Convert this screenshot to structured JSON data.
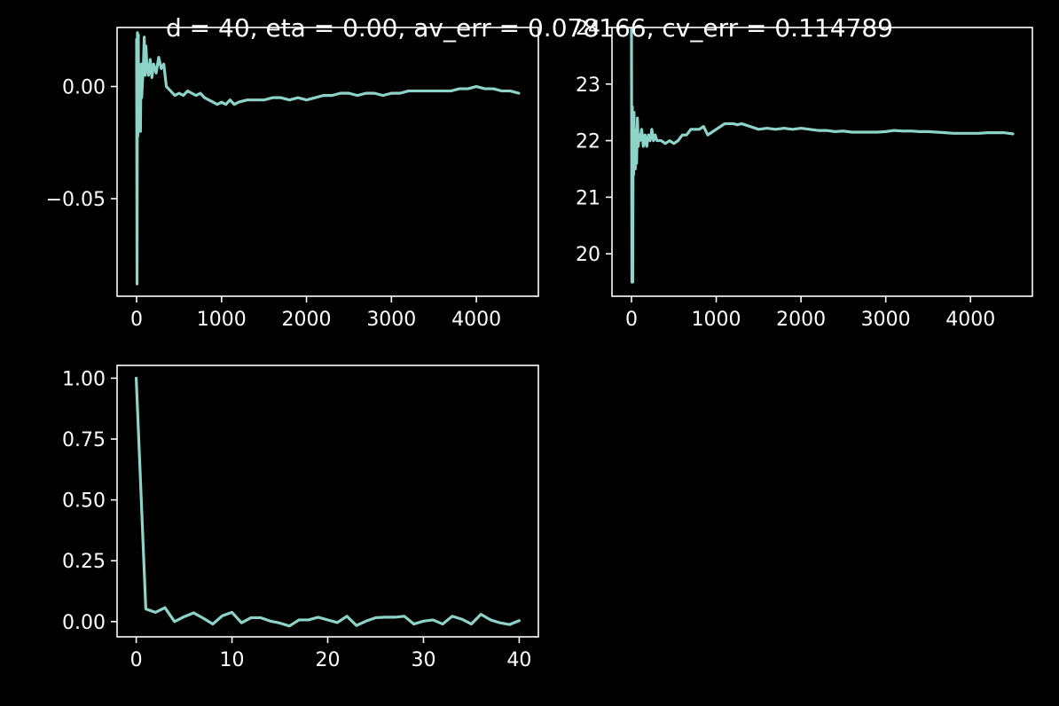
{
  "title": "d = 40, eta = 0.00, av_err = 0.078166, cv_err = 0.114789",
  "colors": {
    "background": "#000000",
    "foreground": "#ffffff",
    "series": "#8dd3c7"
  },
  "chart_data": [
    {
      "type": "line",
      "grid": false,
      "xlim": [
        -230,
        4730
      ],
      "ylim": [
        -0.0935,
        0.0263
      ],
      "xticks": [
        0,
        1000,
        2000,
        3000,
        4000
      ],
      "xtick_labels": [
        "0",
        "1000",
        "2000",
        "3000",
        "4000"
      ],
      "yticks": [
        0.0,
        -0.05
      ],
      "ytick_labels": [
        "0.00",
        "−0.05"
      ],
      "x": [
        0,
        5,
        10,
        15,
        20,
        25,
        30,
        35,
        40,
        45,
        50,
        55,
        60,
        70,
        80,
        90,
        100,
        110,
        120,
        140,
        160,
        180,
        200,
        230,
        260,
        290,
        320,
        350,
        400,
        450,
        500,
        550,
        600,
        650,
        700,
        750,
        800,
        850,
        900,
        950,
        1000,
        1050,
        1100,
        1150,
        1200,
        1300,
        1400,
        1500,
        1600,
        1700,
        1800,
        1900,
        2000,
        2100,
        2200,
        2300,
        2400,
        2500,
        2600,
        2700,
        2800,
        2900,
        3000,
        3100,
        3200,
        3300,
        3400,
        3500,
        3600,
        3700,
        3800,
        3900,
        4000,
        4100,
        4200,
        4300,
        4400,
        4500
      ],
      "y": [
        0.021,
        -0.088,
        0.024,
        -0.022,
        0.023,
        -0.02,
        0.005,
        -0.018,
        -0.005,
        -0.02,
        0.0,
        0.01,
        -0.005,
        0.003,
        0.01,
        0.022,
        0.005,
        0.018,
        0.01,
        0.005,
        0.012,
        0.004,
        0.01,
        0.006,
        0.013,
        0.008,
        0.01,
        0.0,
        -0.002,
        -0.004,
        -0.003,
        -0.004,
        -0.002,
        -0.003,
        -0.004,
        -0.003,
        -0.005,
        -0.006,
        -0.007,
        -0.008,
        -0.007,
        -0.008,
        -0.006,
        -0.008,
        -0.007,
        -0.006,
        -0.006,
        -0.006,
        -0.005,
        -0.005,
        -0.006,
        -0.005,
        -0.006,
        -0.005,
        -0.004,
        -0.004,
        -0.003,
        -0.003,
        -0.004,
        -0.003,
        -0.003,
        -0.004,
        -0.003,
        -0.003,
        -0.002,
        -0.002,
        -0.002,
        -0.002,
        -0.002,
        -0.002,
        -0.001,
        -0.001,
        0.0,
        -0.001,
        -0.001,
        -0.002,
        -0.002,
        -0.003
      ]
    },
    {
      "type": "line",
      "grid": false,
      "xlim": [
        -230,
        4730
      ],
      "ylim": [
        19.25,
        24.0
      ],
      "xticks": [
        0,
        1000,
        2000,
        3000,
        4000
      ],
      "xtick_labels": [
        "0",
        "1000",
        "2000",
        "3000",
        "4000"
      ],
      "yticks": [
        20,
        21,
        22,
        23,
        24
      ],
      "ytick_labels": [
        "20",
        "21",
        "22",
        "23",
        "24"
      ],
      "x": [
        0,
        5,
        10,
        15,
        20,
        25,
        30,
        35,
        40,
        45,
        50,
        60,
        70,
        80,
        90,
        100,
        120,
        140,
        160,
        180,
        200,
        220,
        240,
        260,
        280,
        300,
        350,
        400,
        450,
        500,
        550,
        600,
        650,
        700,
        750,
        800,
        850,
        900,
        950,
        1000,
        1050,
        1100,
        1150,
        1200,
        1250,
        1300,
        1400,
        1500,
        1600,
        1700,
        1800,
        1900,
        2000,
        2100,
        2200,
        2300,
        2400,
        2500,
        2600,
        2700,
        2800,
        2900,
        3000,
        3100,
        3200,
        3300,
        3400,
        3500,
        3600,
        3700,
        3800,
        3900,
        4000,
        4100,
        4200,
        4300,
        4400,
        4500
      ],
      "y": [
        24.0,
        19.5,
        22.6,
        19.5,
        22.4,
        21.4,
        22.5,
        21.7,
        22.2,
        21.5,
        22.0,
        21.6,
        22.4,
        21.9,
        22.1,
        22.0,
        22.2,
        21.9,
        22.1,
        21.9,
        22.1,
        22.0,
        22.2,
        22.0,
        22.1,
        22.0,
        22.0,
        21.95,
        22.0,
        21.95,
        22.0,
        22.1,
        22.1,
        22.2,
        22.2,
        22.2,
        22.25,
        22.1,
        22.15,
        22.2,
        22.25,
        22.3,
        22.3,
        22.3,
        22.28,
        22.3,
        22.25,
        22.2,
        22.22,
        22.2,
        22.22,
        22.2,
        22.22,
        22.2,
        22.18,
        22.18,
        22.16,
        22.17,
        22.15,
        22.15,
        22.15,
        22.15,
        22.16,
        22.18,
        22.17,
        22.17,
        22.16,
        22.16,
        22.15,
        22.14,
        22.13,
        22.13,
        22.13,
        22.13,
        22.14,
        22.14,
        22.14,
        22.12
      ]
    },
    {
      "type": "line",
      "grid": false,
      "xlim": [
        -2,
        42
      ],
      "ylim": [
        -0.0625,
        1.0525
      ],
      "xticks": [
        0,
        10,
        20,
        30,
        40
      ],
      "xtick_labels": [
        "0",
        "10",
        "20",
        "30",
        "40"
      ],
      "yticks": [
        0.0,
        0.25,
        0.5,
        0.75,
        1.0
      ],
      "ytick_labels": [
        "0.00",
        "0.25",
        "0.50",
        "0.75",
        "1.00"
      ],
      "x": [
        0,
        1,
        2,
        3,
        4,
        5,
        6,
        7,
        8,
        9,
        10,
        11,
        12,
        13,
        14,
        15,
        16,
        17,
        18,
        19,
        20,
        21,
        22,
        23,
        24,
        25,
        26,
        27,
        28,
        29,
        30,
        31,
        32,
        33,
        34,
        35,
        36,
        37,
        38,
        39,
        40
      ],
      "y": [
        1.0,
        0.052,
        0.038,
        0.057,
        0.0,
        0.02,
        0.036,
        0.014,
        -0.01,
        0.024,
        0.038,
        -0.005,
        0.016,
        0.016,
        0.002,
        -0.006,
        -0.018,
        0.007,
        0.007,
        0.018,
        0.007,
        -0.004,
        0.022,
        -0.016,
        0.002,
        0.016,
        0.018,
        0.018,
        0.022,
        -0.01,
        0.002,
        0.007,
        -0.01,
        0.022,
        0.01,
        -0.01,
        0.03,
        0.007,
        -0.005,
        -0.012,
        0.004
      ]
    }
  ]
}
